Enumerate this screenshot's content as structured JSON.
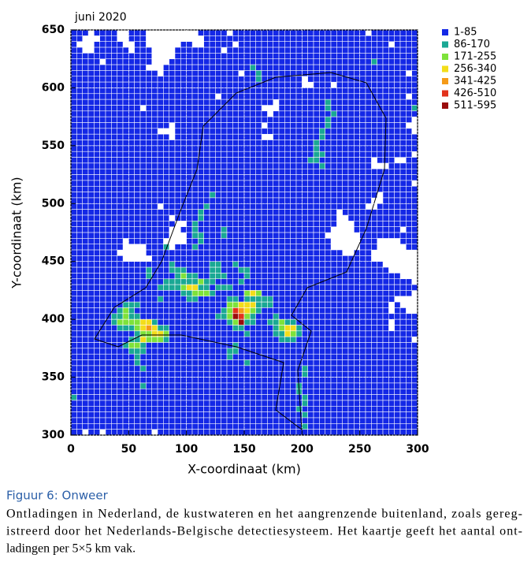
{
  "chart_data": {
    "type": "heatmap",
    "title": "juni 2020",
    "x_label": "X-coordinaat (km)",
    "y_label": "Y-coordinaat (km)",
    "xlim": [
      0,
      300
    ],
    "ylim": [
      300,
      650
    ],
    "xticks": [
      0,
      50,
      100,
      150,
      200,
      250,
      300
    ],
    "yticks": [
      300,
      350,
      400,
      450,
      500,
      550,
      600,
      650
    ],
    "grid": true,
    "legend": [
      {
        "name": "1-85",
        "color": "#1428e6"
      },
      {
        "name": "86-170",
        "color": "#1aa894"
      },
      {
        "name": "171-255",
        "color": "#7ee23a"
      },
      {
        "name": "256-340",
        "color": "#f3dd1a"
      },
      {
        "name": "341-425",
        "color": "#f59a18"
      },
      {
        "name": "426-510",
        "color": "#e2321c"
      },
      {
        "name": "511-595",
        "color": "#9a0c0c"
      }
    ],
    "z": [
      "111011110011100000000011111011111111111111111111111011111111",
      "110001110011100000000001111111111111111111111111111111111111",
      "100011111001100000011001111101111111111111111111111111101111",
      "110011111101110000111111110111111111111111111111111111111111",
      "111111111111110000111111111111111111111111111111111111111111",
      "111110111111110001111111111111111111111111111111111121111111",
      "111111111111100011111111111111121111111111111111111111111111",
      "111111111111111011111111111110112111111111111111111111111101",
      "111111111111111111111111111111112111111101111111111111111111",
      "111111111111111111111111111111111111111100111011111111111111",
      "111111111111111111111111111111111111111111111111111111111111",
      "111111111111111111111111101111111111111111111111111111111101",
      "111111111111111111111111111111111110111111112111111111111111",
      "111111111111011111111111111111111000111111112111111111111112",
      "111111111111111111111111111111111101111111111211111111111111",
      "111111111111111111111111111111111111111111112111111111111110",
      "111111111111111110111111111111111011111111112111111111111100",
      "111111111111111000111111111111111111111111121111111111111110",
      "111111111111111110111111111111111001111111121111111111111111",
      "111111111111111111111111111111111111111111211111111111111111",
      "111111111111111111111111111111111111111111211111111111111111",
      "111111111111111111111111111111111111111111221111111111111110",
      "111111111111111111111111111111111111111112211111111101110011",
      "111111111111111111111111111111111111111111121111111100011111",
      "111111111111111111111111111111111111111111111111111111111111",
      "111111111111111111111111111111111111111111111111111111111111",
      "111111111111111111111111111111111111111111111111111111111110",
      "111111111111111111111111111111111111111111111111111111111111",
      "111111111111111111111111211111111111111111111111111110111111",
      "111111111111111111111111111111111111111111111111111100111111",
      "111111111111111011111112111111111111111111111111111001111111",
      "111111111111111111111121111111111111111111111101111111111111",
      "111111111111111110111121111111111111111111111100111111111111",
      "111111111111111111001211111111111111111111111100011111111111",
      "111111111111111110011211112111111111111111111000011111111011",
      "111111111111111110001221112111111111111111110000001111111111",
      "111111111011111100001121111111111111111111111000001110000111",
      "111111111000011120111211111111111111111111111000001110000011",
      "111111110000011111111111111111111111111111111110011100000000",
      "111111111000001111111111111111111111111111111111111100000000",
      "111111111111111112111111221121111111111111111111111111000000",
      "111111111111121112221111221112211111111111111111111111100000",
      "111111111111121111232211222111211111111111111111111111111000",
      "111111111111111122222232211112111111111111111111111111111110",
      "111111111111111222234422122211111111111111111111111111111111",
      "111111111111111111122333211111343111111111111111111111111110",
      "111111111111111211112211111221222221111111111111111111110000",
      "111111111222111111111111111334442221111111111111111111101000",
      "111111112321111111111111112365432111111111111111111111101100",
      "111111122322111111111111122376321112111111111111111111111111",
      "111111123333442111111111111237221122322111111111111111101111",
      "111111112223454221111111111122111112344211111111111111101111",
      "111111111112334431111111111111211112243211111111111111111111",
      "111111111122433321111111111111111111222111111111111111111110",
      "111111111233211111111111111121111111111111111111111111111111",
      "111111111122211111111111111221111111111111111111111111111111",
      "111111111112111111111111111211111111111111111111111111111111",
      "111111111112111111111111111111211111111111111111111111111111",
      "111111111111211111111111111111111111111121111111111111111111",
      "111111111111111111111111111111111111111121111111111111111111",
      "111111111111111111111111111111111111111111111111111111111111",
      "111111111111211111111111111111111111111211111111111111111111",
      "111111111111111111111111111111111111111211111111111111111111",
      "211111111111111111111111111111111111111121111111111111111111",
      "111111111111111111111111111111111111111121111111111111111111",
      "111111111111111111111111111111111111111211111111111111111111",
      "111111111111111111111111111111111111111121111111111111111111",
      "111111111111111111111111111111111111111111111111111111111111",
      "111111111111111111111111111111111111111121111111111111111111",
      "110110111111110111111111111111111111111111111111111111111111"
    ]
  },
  "caption": {
    "label": "Figuur 6: Onweer",
    "lines": [
      "Ontladingen in Nederland, de kustwateren en het aangrenzende buitenland, zoals gereg-",
      "istreerd door het Nederlands-Belgische detectiesysteem. Het kaartje geeft het aantal ont-",
      "ladingen per 5×5 km vak."
    ]
  }
}
